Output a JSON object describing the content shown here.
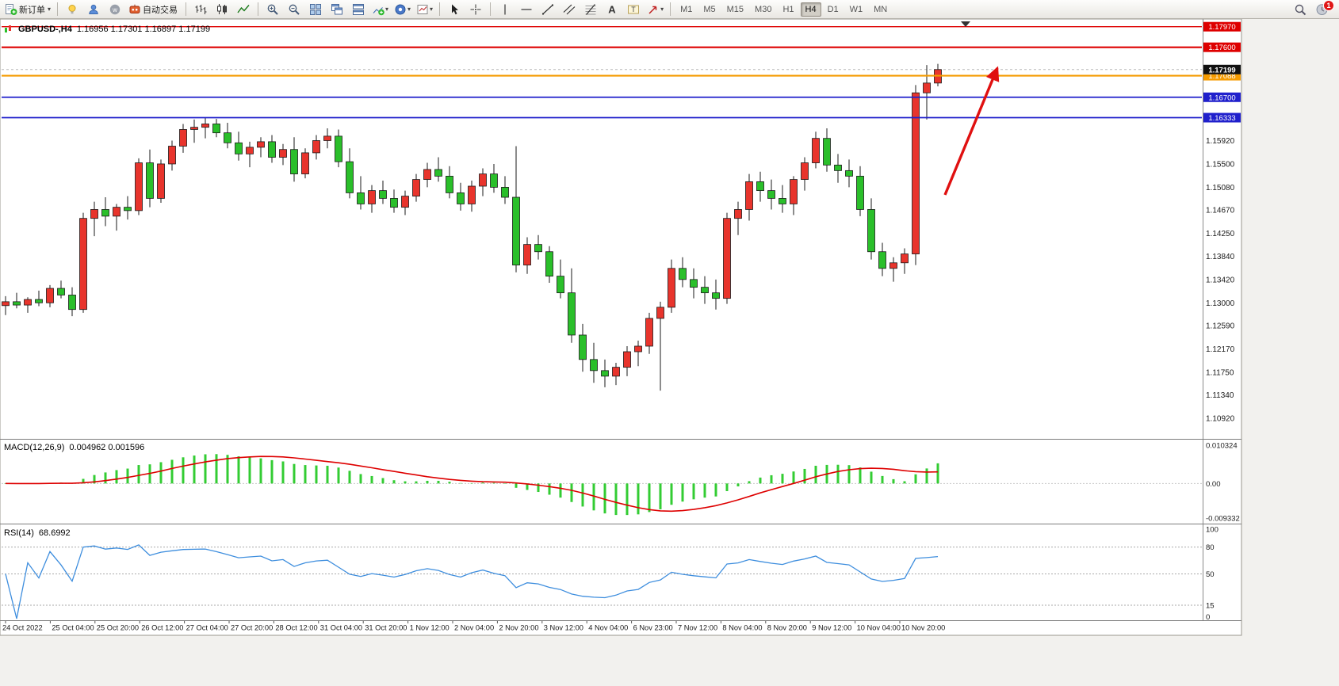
{
  "toolbar": {
    "new_order_label": "新订单",
    "auto_trading_label": "自动交易",
    "timeframes": [
      "M1",
      "M5",
      "M15",
      "M30",
      "H1",
      "H4",
      "D1",
      "W1",
      "MN"
    ],
    "active_timeframe": "H4",
    "notification_badge": "1"
  },
  "chart": {
    "symbol_label": "GBPUSD-,H4",
    "ohlc_label": "1.16956 1.17301 1.16897 1.17199",
    "current_price_label": "1.17199",
    "hlines": [
      {
        "label": "1.17970",
        "price": 1.1797,
        "color": "#de0000",
        "width": 1.4
      },
      {
        "label": "1.17600",
        "price": 1.176,
        "color": "#de0000",
        "width": 2.2
      },
      {
        "label": "1.17088",
        "price": 1.17088,
        "color": "#f59b00",
        "width": 2.2
      },
      {
        "label": "1.16700",
        "price": 1.167,
        "color": "#2020cc",
        "width": 1.8
      },
      {
        "label": "1.16333",
        "price": 1.16333,
        "color": "#2020cc",
        "width": 1.8
      }
    ],
    "price_axis_labels": [
      "1.15920",
      "1.15500",
      "1.15080",
      "1.14670",
      "1.14250",
      "1.13840",
      "1.13420",
      "1.13000",
      "1.12590",
      "1.12170",
      "1.11750",
      "1.11340",
      "1.10920"
    ]
  },
  "macd": {
    "name": "MACD(12,26,9)",
    "values": "0.004962 0.001596",
    "axis_labels": [
      "0.010324",
      "0.00",
      "-0.009332"
    ]
  },
  "rsi": {
    "name": "RSI(14)",
    "value": "68.6992",
    "levels": [
      80,
      50,
      15
    ],
    "axis_labels": [
      100,
      80,
      50,
      15,
      0
    ]
  },
  "chart_data": {
    "type": "candlestick",
    "symbol": "GBPUSD-",
    "timeframe": "H4",
    "ylim": [
      1.1058,
      1.1808
    ],
    "colors": {
      "up": "#e8342c",
      "down": "#2abf2a",
      "wick": "#1a1a1a",
      "outline": "#1a1a1a",
      "macd_hist": "#33cc33",
      "macd_signal": "#de0000",
      "rsi": "#3e8ede",
      "arrow": "#e01010"
    },
    "indicators": {
      "macd": {
        "fast": 12,
        "slow": 26,
        "signal": 9
      },
      "rsi": {
        "period": 14
      }
    },
    "time_labels": [
      "24 Oct 2022",
      "25 Oct 04:00",
      "25 Oct 20:00",
      "26 Oct 12:00",
      "27 Oct 04:00",
      "27 Oct 20:00",
      "28 Oct 12:00",
      "31 Oct 04:00",
      "31 Oct 20:00",
      "1 Nov 12:00",
      "2 Nov 04:00",
      "2 Nov 20:00",
      "3 Nov 12:00",
      "4 Nov 04:00",
      "6 Nov 23:00",
      "7 Nov 12:00",
      "8 Nov 04:00",
      "8 Nov 20:00",
      "9 Nov 12:00",
      "10 Nov 04:00",
      "10 Nov 20:00"
    ],
    "ohlc": [
      [
        1.1295,
        1.1312,
        1.1278,
        1.1302
      ],
      [
        1.1302,
        1.1318,
        1.129,
        1.1296
      ],
      [
        1.1296,
        1.131,
        1.1282,
        1.1306
      ],
      [
        1.1306,
        1.1322,
        1.1294,
        1.13
      ],
      [
        1.13,
        1.1332,
        1.1292,
        1.1326
      ],
      [
        1.1326,
        1.134,
        1.1308,
        1.1314
      ],
      [
        1.1314,
        1.1328,
        1.1276,
        1.1288
      ],
      [
        1.1288,
        1.1462,
        1.1282,
        1.1452
      ],
      [
        1.1452,
        1.1482,
        1.142,
        1.1468
      ],
      [
        1.1468,
        1.149,
        1.1438,
        1.1456
      ],
      [
        1.1456,
        1.1478,
        1.143,
        1.1472
      ],
      [
        1.1472,
        1.1492,
        1.145,
        1.1466
      ],
      [
        1.1466,
        1.156,
        1.1458,
        1.1552
      ],
      [
        1.1552,
        1.1576,
        1.1472,
        1.1488
      ],
      [
        1.1488,
        1.1558,
        1.148,
        1.155
      ],
      [
        1.155,
        1.1592,
        1.1538,
        1.1582
      ],
      [
        1.1582,
        1.1622,
        1.157,
        1.1612
      ],
      [
        1.1612,
        1.163,
        1.1588,
        1.1616
      ],
      [
        1.1616,
        1.1633,
        1.1596,
        1.1622
      ],
      [
        1.1622,
        1.1631,
        1.1598,
        1.1606
      ],
      [
        1.1606,
        1.1624,
        1.1578,
        1.1588
      ],
      [
        1.1588,
        1.1608,
        1.1556,
        1.1568
      ],
      [
        1.1568,
        1.159,
        1.1544,
        1.158
      ],
      [
        1.158,
        1.1598,
        1.1562,
        1.159
      ],
      [
        1.159,
        1.1602,
        1.1552,
        1.1562
      ],
      [
        1.1562,
        1.1586,
        1.1548,
        1.1576
      ],
      [
        1.1576,
        1.1598,
        1.1518,
        1.1532
      ],
      [
        1.1532,
        1.1578,
        1.1524,
        1.157
      ],
      [
        1.157,
        1.1602,
        1.1558,
        1.1592
      ],
      [
        1.1592,
        1.1614,
        1.1578,
        1.16
      ],
      [
        1.16,
        1.1612,
        1.1544,
        1.1554
      ],
      [
        1.1554,
        1.1578,
        1.1488,
        1.1498
      ],
      [
        1.1498,
        1.1528,
        1.1468,
        1.1478
      ],
      [
        1.1478,
        1.1512,
        1.1462,
        1.1502
      ],
      [
        1.1502,
        1.152,
        1.1478,
        1.1488
      ],
      [
        1.1488,
        1.1504,
        1.1462,
        1.1472
      ],
      [
        1.1472,
        1.1502,
        1.1458,
        1.1492
      ],
      [
        1.1492,
        1.1532,
        1.1482,
        1.1522
      ],
      [
        1.1522,
        1.1552,
        1.1508,
        1.154
      ],
      [
        1.154,
        1.1562,
        1.1518,
        1.1528
      ],
      [
        1.1528,
        1.1546,
        1.1488,
        1.1498
      ],
      [
        1.1498,
        1.1516,
        1.1466,
        1.1478
      ],
      [
        1.1478,
        1.152,
        1.1464,
        1.151
      ],
      [
        1.151,
        1.1542,
        1.1492,
        1.1532
      ],
      [
        1.1532,
        1.155,
        1.1498,
        1.1508
      ],
      [
        1.1508,
        1.1528,
        1.1478,
        1.149
      ],
      [
        1.149,
        1.1582,
        1.1355,
        1.1368
      ],
      [
        1.1368,
        1.1418,
        1.1352,
        1.1405
      ],
      [
        1.1405,
        1.1422,
        1.1378,
        1.1392
      ],
      [
        1.1392,
        1.1402,
        1.1336,
        1.1348
      ],
      [
        1.1348,
        1.1378,
        1.1308,
        1.1318
      ],
      [
        1.1318,
        1.1362,
        1.1228,
        1.1242
      ],
      [
        1.1242,
        1.1262,
        1.1176,
        1.1198
      ],
      [
        1.1198,
        1.1228,
        1.1156,
        1.1178
      ],
      [
        1.1178,
        1.1198,
        1.1148,
        1.1168
      ],
      [
        1.1168,
        1.1192,
        1.1152,
        1.1184
      ],
      [
        1.1184,
        1.1222,
        1.1168,
        1.1212
      ],
      [
        1.1212,
        1.1232,
        1.1186,
        1.1222
      ],
      [
        1.1222,
        1.1282,
        1.1208,
        1.1272
      ],
      [
        1.1272,
        1.1302,
        1.1142,
        1.1292
      ],
      [
        1.1292,
        1.1378,
        1.1282,
        1.1362
      ],
      [
        1.1362,
        1.1382,
        1.1328,
        1.1342
      ],
      [
        1.1342,
        1.1362,
        1.1308,
        1.1328
      ],
      [
        1.1328,
        1.1348,
        1.1298,
        1.1318
      ],
      [
        1.1318,
        1.1342,
        1.1288,
        1.1308
      ],
      [
        1.1308,
        1.1462,
        1.1298,
        1.1452
      ],
      [
        1.1452,
        1.1482,
        1.1422,
        1.1468
      ],
      [
        1.1468,
        1.1532,
        1.1448,
        1.1518
      ],
      [
        1.1518,
        1.1536,
        1.1482,
        1.1502
      ],
      [
        1.1502,
        1.1522,
        1.1468,
        1.1488
      ],
      [
        1.1488,
        1.1512,
        1.1462,
        1.1478
      ],
      [
        1.1478,
        1.1528,
        1.1458,
        1.1522
      ],
      [
        1.1522,
        1.1562,
        1.1502,
        1.1552
      ],
      [
        1.1552,
        1.1608,
        1.1542,
        1.1596
      ],
      [
        1.1596,
        1.1614,
        1.1536,
        1.1548
      ],
      [
        1.1548,
        1.1568,
        1.1516,
        1.1538
      ],
      [
        1.1538,
        1.1558,
        1.1508,
        1.1528
      ],
      [
        1.1528,
        1.1546,
        1.1456,
        1.1468
      ],
      [
        1.1468,
        1.1488,
        1.1378,
        1.1392
      ],
      [
        1.1392,
        1.1408,
        1.1348,
        1.1362
      ],
      [
        1.1362,
        1.1382,
        1.1338,
        1.1372
      ],
      [
        1.1372,
        1.1398,
        1.1352,
        1.1388
      ],
      [
        1.1388,
        1.1692,
        1.1368,
        1.1678
      ],
      [
        1.1678,
        1.1728,
        1.163,
        1.16956
      ],
      [
        1.16956,
        1.17301,
        1.16897,
        1.17199
      ]
    ]
  }
}
